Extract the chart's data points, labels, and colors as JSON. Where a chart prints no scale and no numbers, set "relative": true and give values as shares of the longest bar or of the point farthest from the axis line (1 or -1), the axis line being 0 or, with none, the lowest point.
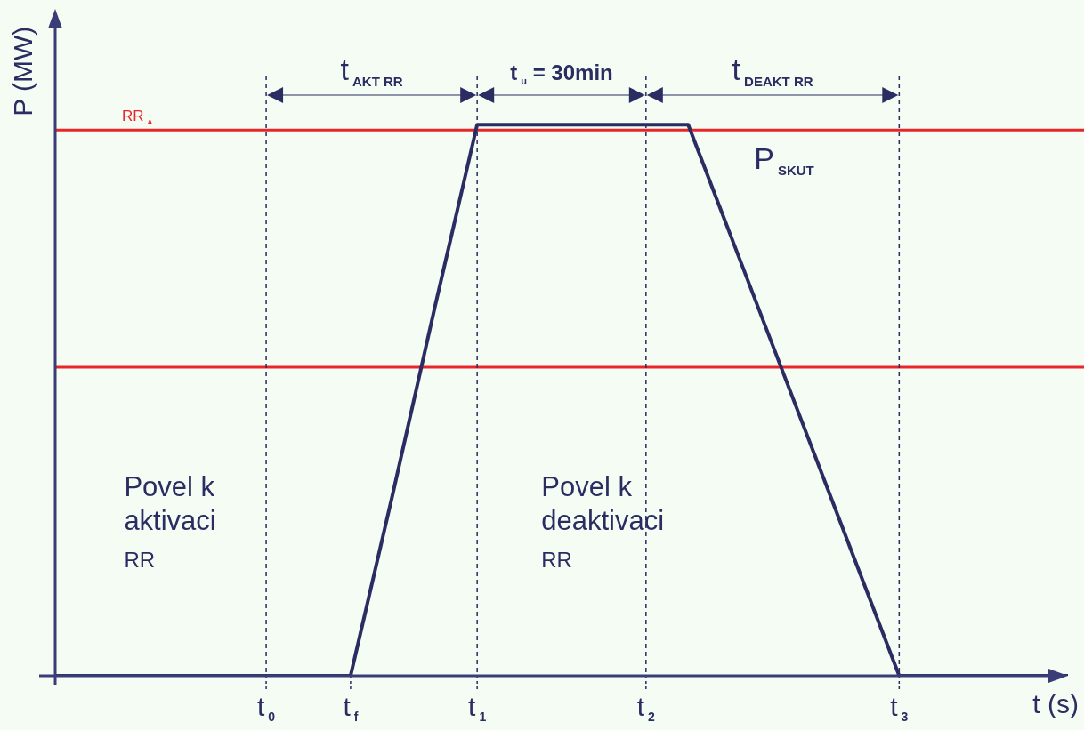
{
  "chart_data": {
    "type": "line",
    "relative": true,
    "xlabel": "t (s)",
    "ylabel": "P (MW)",
    "categories": [
      null,
      null,
      null,
      null,
      null,
      "t$_{0}$",
      null,
      "t$_{f}$",
      null,
      null,
      "t$_{1}$",
      null,
      null,
      null,
      "t$_{2}$",
      null,
      null,
      null,
      null,
      null,
      "t$_{3}$",
      null,
      null,
      null,
      null
    ],
    "series": [
      {
        "color": "#2b2d62",
        "values": [
          0,
          0,
          0,
          0,
          0,
          0,
          0,
          0,
          0.33,
          0.67,
          1,
          1,
          1,
          1,
          1,
          1,
          0.8,
          0.6,
          0.4,
          0.2,
          0,
          0,
          0,
          0,
          0
        ]
      }
    ],
    "ref_lines": [
      {
        "axis": "y",
        "value": 0.99,
        "label": "RR$_{A}$",
        "color": "#e8262a"
      },
      {
        "axis": "y",
        "value": 0.56,
        "color": "#e8262a"
      },
      {
        "axis": "x",
        "value": "t$_{0}$",
        "color": "#2b2d62",
        "line_style": "dashed"
      },
      {
        "axis": "x",
        "value": "t$_{1}$",
        "color": "#2b2d62",
        "line_style": "dashed"
      },
      {
        "axis": "x",
        "value": "t$_{2}$",
        "color": "#2b2d62",
        "line_style": "dashed"
      },
      {
        "axis": "x",
        "value": "t$_{3}$",
        "color": "#2b2d62",
        "line_style": "dashed"
      }
    ],
    "annotations": [
      "t$_{AKT RR}$",
      "t$_{u}$ = 30min",
      "t$_{DEAKT RR}$",
      "P$_{SKUT}$",
      "Povel k\naktivaci\nRR",
      "Povel k\ndeaktivaci\nRR"
    ]
  }
}
